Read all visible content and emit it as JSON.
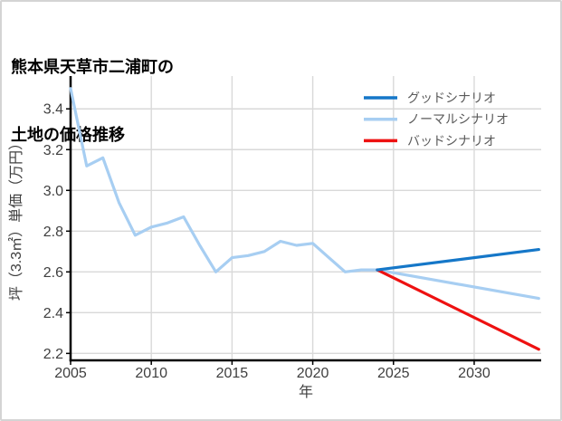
{
  "title": {
    "line1": "熊本県天草市二浦町の",
    "line2": "土地の価格推移"
  },
  "colors": {
    "good_scenario": "#1577c8",
    "normal_scenario": "#a7cef2",
    "bad_scenario": "#ee1111",
    "grid": "#d9d9d9",
    "axis": "#000000",
    "tick_text": "#3f3f3f",
    "axis_label_text": "#3f3f3f",
    "legend_text": "#5a5a5a"
  },
  "chart_data": {
    "type": "line",
    "title": "熊本県天草市二浦町の土地の価格推移",
    "xlabel": "年",
    "ylabel": "坪（3.3㎡）単価（万円）",
    "x_ticks": [
      2005,
      2010,
      2015,
      2020,
      2025,
      2030
    ],
    "y_ticks": [
      2.2,
      2.4,
      2.6,
      2.8,
      3.0,
      3.2,
      3.4
    ],
    "xlim": [
      2005,
      2034.15
    ],
    "ylim": [
      2.166,
      3.561
    ],
    "grid": true,
    "legend": {
      "position": "top-right",
      "entries": [
        "グッドシナリオ",
        "ノーマルシナリオ",
        "バッドシナリオ"
      ]
    },
    "series": [
      {
        "name": "グッドシナリオ",
        "color": "#1577c8",
        "x": [
          2024,
          2034
        ],
        "values": [
          2.61,
          2.71
        ]
      },
      {
        "name": "ノーマルシナリオ",
        "color": "#a7cef2",
        "x": [
          2005,
          2006,
          2007,
          2008,
          2009,
          2010,
          2011,
          2012,
          2013,
          2014,
          2015,
          2016,
          2017,
          2018,
          2019,
          2020,
          2021,
          2022,
          2023,
          2024,
          2034
        ],
        "values": [
          3.5,
          3.12,
          3.16,
          2.94,
          2.78,
          2.82,
          2.84,
          2.87,
          2.73,
          2.6,
          2.67,
          2.68,
          2.7,
          2.75,
          2.73,
          2.74,
          2.67,
          2.6,
          2.61,
          2.61,
          2.47
        ]
      },
      {
        "name": "バッドシナリオ",
        "color": "#ee1111",
        "x": [
          2024,
          2034
        ],
        "values": [
          2.61,
          2.22
        ]
      }
    ]
  }
}
